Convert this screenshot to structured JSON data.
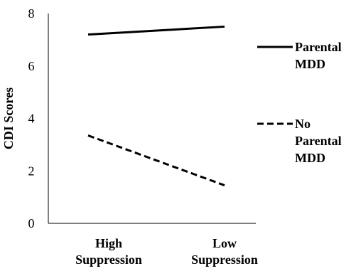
{
  "chart_data": {
    "type": "line",
    "title": "",
    "xlabel": "",
    "ylabel": "CDI Scores",
    "categories": [
      [
        "High",
        "Suppression"
      ],
      [
        "Low",
        "Suppression"
      ]
    ],
    "ylim": [
      0,
      8
    ],
    "yticks": [
      0,
      2,
      4,
      6,
      8
    ],
    "grid": false,
    "legend": "right",
    "series": [
      {
        "name": [
          "Parental",
          "MDD"
        ],
        "values": [
          7.2,
          7.5
        ],
        "dash": "solid"
      },
      {
        "name": [
          "No",
          "Parental",
          "MDD"
        ],
        "values": [
          3.35,
          1.45
        ],
        "dash": "dashed"
      }
    ]
  }
}
